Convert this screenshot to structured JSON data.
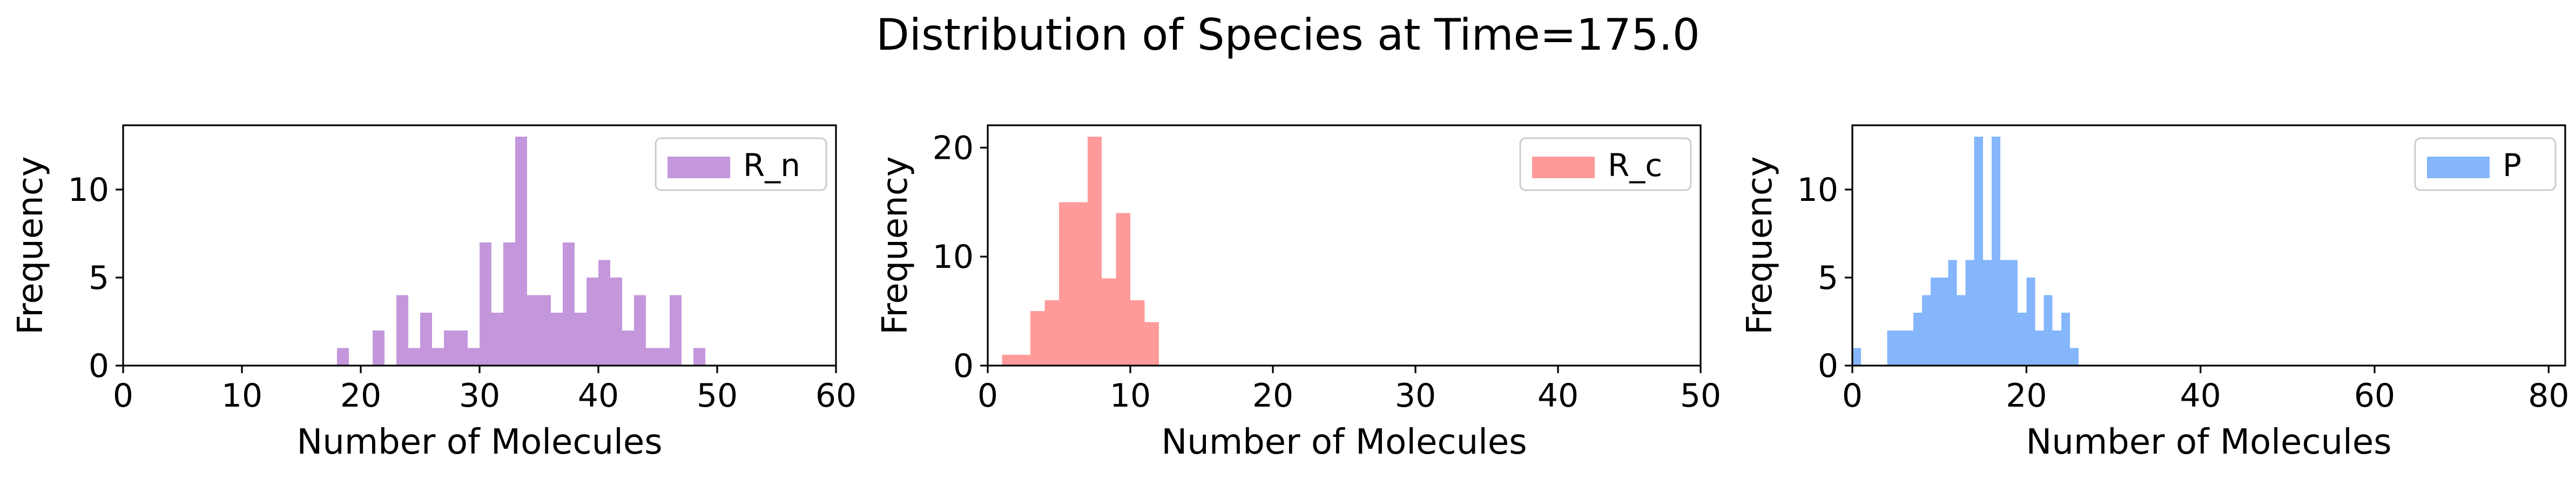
{
  "figure": {
    "title": "Distribution of Species at Time=175.0"
  },
  "chart_data": [
    {
      "type": "bar",
      "histogram": true,
      "color": "#c497dc",
      "legend": {
        "label": "R_n",
        "position": "upper-right",
        "swatch_color": "#c497dc"
      },
      "xlabel": "Number of Molecules",
      "ylabel": "Frequency",
      "xlim": [
        0,
        60
      ],
      "ylim": [
        0,
        13.65
      ],
      "xticks": [
        0,
        10,
        20,
        30,
        40,
        50,
        60
      ],
      "yticks": [
        0,
        5,
        10
      ],
      "bins": [
        {
          "x0": 18,
          "x1": 19,
          "y": 1
        },
        {
          "x0": 21,
          "x1": 22,
          "y": 2
        },
        {
          "x0": 23,
          "x1": 24,
          "y": 4
        },
        {
          "x0": 24,
          "x1": 25,
          "y": 1
        },
        {
          "x0": 25,
          "x1": 26,
          "y": 3
        },
        {
          "x0": 26,
          "x1": 27,
          "y": 1
        },
        {
          "x0": 27,
          "x1": 28,
          "y": 2
        },
        {
          "x0": 28,
          "x1": 29,
          "y": 2
        },
        {
          "x0": 29,
          "x1": 30,
          "y": 1
        },
        {
          "x0": 30,
          "x1": 31,
          "y": 7
        },
        {
          "x0": 31,
          "x1": 32,
          "y": 3
        },
        {
          "x0": 32,
          "x1": 33,
          "y": 7
        },
        {
          "x0": 33,
          "x1": 34,
          "y": 13
        },
        {
          "x0": 34,
          "x1": 35,
          "y": 4
        },
        {
          "x0": 35,
          "x1": 36,
          "y": 4
        },
        {
          "x0": 36,
          "x1": 37,
          "y": 3
        },
        {
          "x0": 37,
          "x1": 38,
          "y": 7
        },
        {
          "x0": 38,
          "x1": 39,
          "y": 3
        },
        {
          "x0": 39,
          "x1": 40,
          "y": 5
        },
        {
          "x0": 40,
          "x1": 41,
          "y": 6
        },
        {
          "x0": 41,
          "x1": 42,
          "y": 5
        },
        {
          "x0": 42,
          "x1": 43,
          "y": 2
        },
        {
          "x0": 43,
          "x1": 44,
          "y": 4
        },
        {
          "x0": 44,
          "x1": 45,
          "y": 1
        },
        {
          "x0": 45,
          "x1": 46,
          "y": 1
        },
        {
          "x0": 46,
          "x1": 47,
          "y": 4
        },
        {
          "x0": 48,
          "x1": 49,
          "y": 1
        }
      ]
    },
    {
      "type": "bar",
      "histogram": true,
      "color": "#ff9a9a",
      "legend": {
        "label": "R_c",
        "position": "upper-right",
        "swatch_color": "#ff9a9a"
      },
      "xlabel": "Number of Molecules",
      "ylabel": "Frequency",
      "xlim": [
        0,
        50
      ],
      "ylim": [
        0,
        22.05
      ],
      "xticks": [
        0,
        10,
        20,
        30,
        40,
        50
      ],
      "yticks": [
        0,
        10,
        20
      ],
      "bins": [
        {
          "x0": 1,
          "x1": 2,
          "y": 1
        },
        {
          "x0": 2,
          "x1": 3,
          "y": 1
        },
        {
          "x0": 3,
          "x1": 4,
          "y": 5
        },
        {
          "x0": 4,
          "x1": 5,
          "y": 6
        },
        {
          "x0": 5,
          "x1": 6,
          "y": 15
        },
        {
          "x0": 6,
          "x1": 7,
          "y": 15
        },
        {
          "x0": 7,
          "x1": 8,
          "y": 21
        },
        {
          "x0": 8,
          "x1": 9,
          "y": 8
        },
        {
          "x0": 9,
          "x1": 10,
          "y": 14
        },
        {
          "x0": 10,
          "x1": 11,
          "y": 6
        },
        {
          "x0": 11,
          "x1": 12,
          "y": 4
        }
      ]
    },
    {
      "type": "bar",
      "histogram": true,
      "color": "#85b6fb",
      "legend": {
        "label": "P",
        "position": "upper-right",
        "swatch_color": "#85b6fb"
      },
      "xlabel": "Number of Molecules",
      "ylabel": "Frequency",
      "xlim": [
        0,
        81.9
      ],
      "ylim": [
        0,
        13.65
      ],
      "xticks": [
        0,
        20,
        40,
        60,
        80
      ],
      "yticks": [
        0,
        5,
        10
      ],
      "bins": [
        {
          "x0": 0,
          "x1": 1,
          "y": 1
        },
        {
          "x0": 4,
          "x1": 5,
          "y": 2
        },
        {
          "x0": 5,
          "x1": 6,
          "y": 2
        },
        {
          "x0": 6,
          "x1": 7,
          "y": 2
        },
        {
          "x0": 7,
          "x1": 8,
          "y": 3
        },
        {
          "x0": 8,
          "x1": 9,
          "y": 4
        },
        {
          "x0": 9,
          "x1": 10,
          "y": 5
        },
        {
          "x0": 10,
          "x1": 11,
          "y": 5
        },
        {
          "x0": 11,
          "x1": 12,
          "y": 6
        },
        {
          "x0": 12,
          "x1": 13,
          "y": 4
        },
        {
          "x0": 13,
          "x1": 14,
          "y": 6
        },
        {
          "x0": 14,
          "x1": 15,
          "y": 13
        },
        {
          "x0": 15,
          "x1": 16,
          "y": 6
        },
        {
          "x0": 16,
          "x1": 17,
          "y": 13
        },
        {
          "x0": 17,
          "x1": 18,
          "y": 6
        },
        {
          "x0": 18,
          "x1": 19,
          "y": 6
        },
        {
          "x0": 19,
          "x1": 20,
          "y": 3
        },
        {
          "x0": 20,
          "x1": 21,
          "y": 5
        },
        {
          "x0": 21,
          "x1": 22,
          "y": 2
        },
        {
          "x0": 22,
          "x1": 23,
          "y": 4
        },
        {
          "x0": 23,
          "x1": 24,
          "y": 2
        },
        {
          "x0": 24,
          "x1": 25,
          "y": 3
        },
        {
          "x0": 25,
          "x1": 26,
          "y": 1
        }
      ]
    }
  ]
}
